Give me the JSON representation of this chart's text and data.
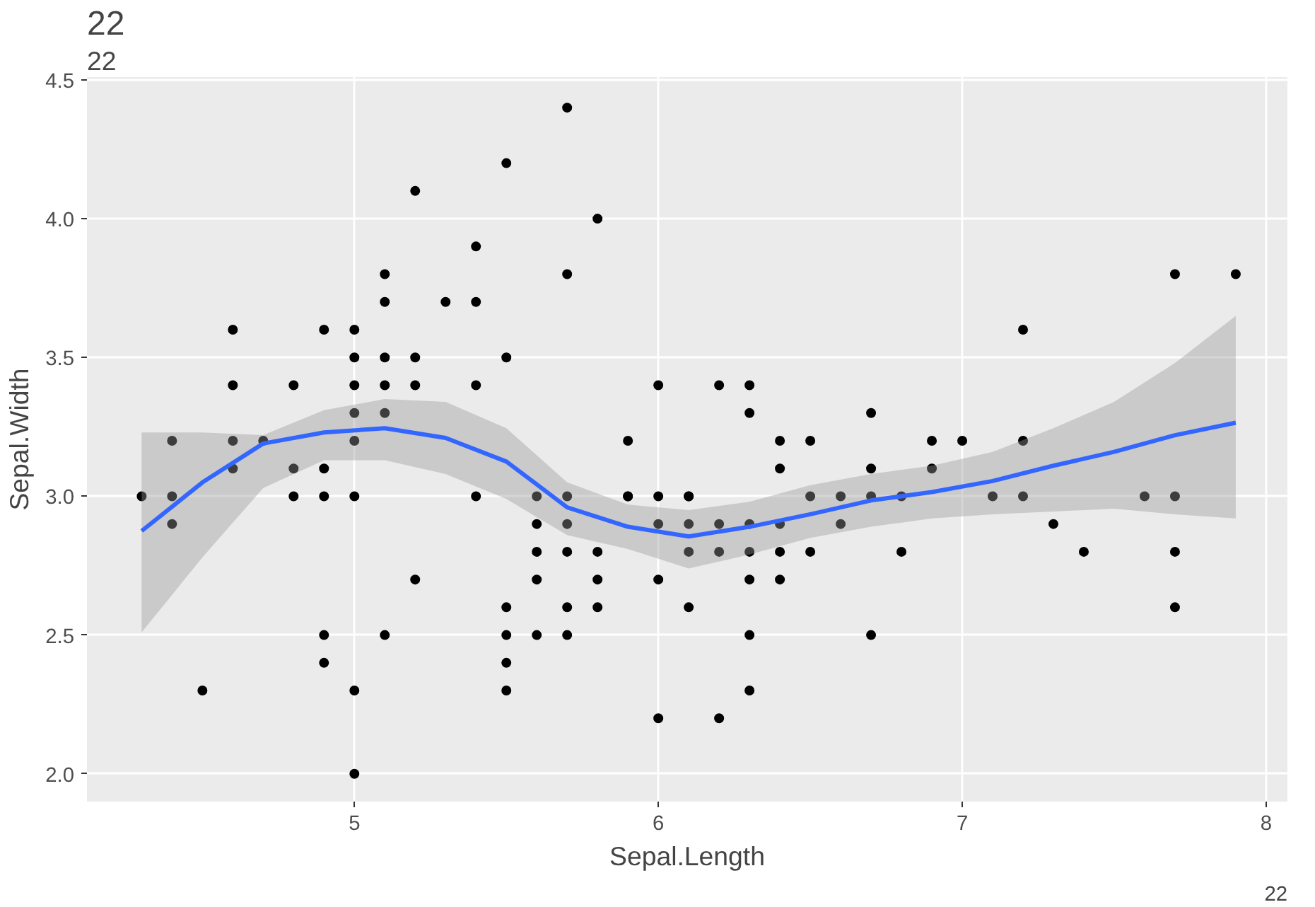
{
  "chart_data": {
    "type": "scatter",
    "title": "22",
    "subtitle": "22",
    "xlabel": "Sepal.Length",
    "ylabel": "Sepal.Width",
    "annotations": [
      "22"
    ],
    "xlim": [
      4.12,
      8.07
    ],
    "ylim": [
      1.9,
      4.51
    ],
    "xticks": [
      5,
      6,
      7,
      8
    ],
    "yticks": [
      {
        "value": 2,
        "label": "2.0"
      },
      {
        "value": 2.5,
        "label": "2.5"
      },
      {
        "value": 3,
        "label": "3.0"
      },
      {
        "value": 3.5,
        "label": "3.5"
      },
      {
        "value": 4,
        "label": "4.0"
      },
      {
        "value": 4.5,
        "label": "4.5"
      }
    ],
    "grid": true,
    "series": [
      {
        "color": "#000000",
        "marker": "circle",
        "x": [
          5.1,
          4.9,
          4.7,
          4.6,
          5.0,
          5.4,
          4.6,
          5.0,
          4.4,
          4.9,
          5.4,
          4.8,
          4.8,
          4.3,
          5.8,
          5.7,
          5.7,
          5.1,
          5.4,
          5.1,
          4.6,
          5.1,
          5.0,
          5.2,
          5.2,
          4.8,
          5.2,
          5.5,
          5.0,
          5.5,
          4.9,
          4.4,
          5.1,
          5.0,
          4.5,
          4.4,
          4.6,
          5.3,
          5.0,
          7.0,
          6.4,
          6.9,
          5.5,
          6.5,
          5.7,
          6.3,
          4.9,
          6.6,
          5.2,
          5.0,
          5.9,
          6.0,
          6.1,
          5.6,
          6.7,
          5.6,
          5.8,
          6.2,
          5.6,
          5.9,
          6.1,
          6.3,
          6.4,
          6.6,
          6.8,
          6.7,
          6.0,
          5.7,
          5.5,
          6.0,
          5.4,
          6.0,
          6.3,
          5.5,
          5.5,
          6.1,
          5.8,
          5.0,
          5.6,
          5.7,
          5.7,
          6.2,
          5.1,
          7.1,
          6.3,
          6.5,
          7.6,
          4.9,
          7.3,
          6.7,
          7.2,
          6.5,
          6.4,
          6.8,
          5.7,
          5.8,
          7.7,
          7.7,
          6.9,
          5.6,
          7.7,
          6.3,
          7.2,
          6.2,
          6.1,
          6.4,
          7.2,
          7.4,
          7.9,
          6.3,
          6.1,
          7.7,
          6.3,
          6.4,
          6.0,
          6.7,
          6.2,
          5.9
        ],
        "values": [
          3.5,
          3.0,
          3.2,
          3.1,
          3.6,
          3.9,
          3.4,
          3.4,
          2.9,
          3.1,
          3.7,
          3.4,
          3.0,
          3.0,
          4.0,
          4.4,
          3.8,
          3.8,
          3.4,
          3.7,
          3.6,
          3.3,
          3.0,
          3.5,
          3.4,
          3.1,
          4.1,
          4.2,
          3.2,
          3.5,
          3.6,
          3.0,
          3.4,
          3.5,
          2.3,
          3.2,
          3.2,
          3.7,
          3.3,
          3.2,
          3.2,
          3.1,
          2.3,
          2.8,
          2.8,
          3.3,
          2.4,
          2.9,
          2.7,
          2.0,
          3.0,
          2.2,
          2.9,
          2.9,
          3.1,
          3.0,
          2.7,
          2.2,
          2.5,
          3.2,
          2.8,
          2.5,
          2.9,
          3.0,
          2.8,
          3.0,
          2.9,
          2.6,
          2.4,
          2.7,
          3.0,
          3.4,
          2.3,
          2.5,
          2.6,
          3.0,
          2.6,
          2.3,
          2.7,
          3.0,
          2.9,
          2.9,
          2.5,
          3.0,
          2.9,
          3.0,
          3.0,
          2.5,
          2.9,
          2.5,
          3.6,
          3.2,
          2.7,
          3.0,
          2.5,
          2.8,
          3.8,
          2.6,
          3.2,
          2.8,
          2.8,
          2.7,
          3.2,
          2.8,
          3.0,
          2.8,
          3.0,
          2.8,
          3.8,
          2.8,
          2.6,
          3.0,
          3.4,
          3.1,
          3.0,
          3.3,
          3.4,
          3.0
        ]
      },
      {
        "type": "line",
        "color": "#3366ff",
        "marker": "none",
        "x": [
          4.3,
          4.5,
          4.7,
          4.9,
          5.1,
          5.3,
          5.5,
          5.7,
          5.9,
          6.1,
          6.3,
          6.5,
          6.7,
          6.9,
          7.1,
          7.3,
          7.5,
          7.7,
          7.9
        ],
        "values": [
          2.875,
          3.05,
          3.19,
          3.23,
          3.245,
          3.21,
          3.125,
          2.96,
          2.89,
          2.855,
          2.89,
          2.935,
          2.985,
          3.015,
          3.055,
          3.11,
          3.16,
          3.22,
          3.265
        ],
        "lower": [
          2.51,
          2.78,
          3.03,
          3.13,
          3.13,
          3.08,
          2.99,
          2.86,
          2.81,
          2.74,
          2.79,
          2.85,
          2.89,
          2.92,
          2.935,
          2.945,
          2.955,
          2.935,
          2.92
        ],
        "upper": [
          3.23,
          3.23,
          3.22,
          3.31,
          3.35,
          3.34,
          3.245,
          3.05,
          2.97,
          2.95,
          2.98,
          3.04,
          3.08,
          3.11,
          3.16,
          3.245,
          3.34,
          3.48,
          3.65
        ]
      }
    ]
  }
}
